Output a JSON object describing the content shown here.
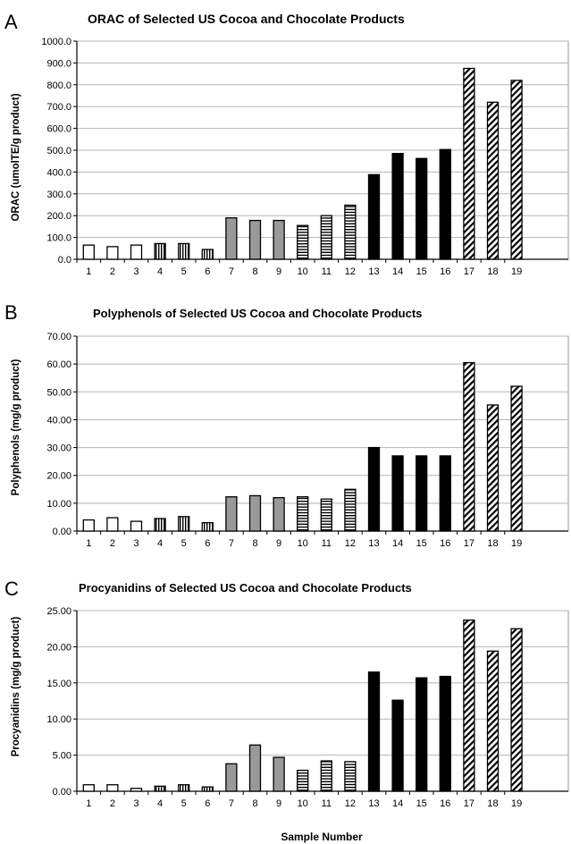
{
  "chart_data": [
    {
      "type": "bar",
      "panel": "A",
      "title": "ORAC of Selected US Cocoa and Chocolate Products",
      "ylabel": "ORAC (umolTE/g product)",
      "xlabel": "",
      "ylim": [
        0,
        1000
      ],
      "ytick_step": 100,
      "ytick_labels": [
        "0.0",
        "100.0",
        "200.0",
        "300.0",
        "400.0",
        "500.0",
        "600.0",
        "700.0",
        "800.0",
        "900.0",
        "1000.0"
      ],
      "grid": true,
      "categories": [
        "1",
        "2",
        "3",
        "4",
        "5",
        "6",
        "7",
        "8",
        "9",
        "10",
        "11",
        "12",
        "13",
        "14",
        "15",
        "16",
        "17",
        "18",
        "19"
      ],
      "values": [
        65,
        58,
        65,
        72,
        72,
        45,
        190,
        178,
        178,
        155,
        200,
        248,
        388,
        485,
        462,
        503,
        875,
        720,
        820
      ],
      "patterns": [
        "white",
        "white",
        "white",
        "vlines",
        "vlines",
        "vlines",
        "gray",
        "gray",
        "gray",
        "hlines",
        "hlines",
        "hlines",
        "black",
        "black",
        "black",
        "black",
        "diag",
        "diag",
        "diag"
      ]
    },
    {
      "type": "bar",
      "panel": "B",
      "title": "Polyphenols of Selected US Cocoa and Chocolate Products",
      "ylabel": "Polyphenols (mg/g product)",
      "xlabel": "",
      "ylim": [
        0,
        70
      ],
      "ytick_step": 10,
      "ytick_labels": [
        "0.00",
        "10.00",
        "20.00",
        "30.00",
        "40.00",
        "50.00",
        "60.00",
        "70.00"
      ],
      "grid": true,
      "categories": [
        "1",
        "2",
        "3",
        "4",
        "5",
        "6",
        "7",
        "8",
        "9",
        "10",
        "11",
        "12",
        "13",
        "14",
        "15",
        "16",
        "17",
        "18",
        "19"
      ],
      "values": [
        4.0,
        4.8,
        3.5,
        4.5,
        5.2,
        3.0,
        12.3,
        12.7,
        12.0,
        12.3,
        11.5,
        15.0,
        30.0,
        27.0,
        27.0,
        27.0,
        60.5,
        45.3,
        52.0
      ],
      "patterns": [
        "white",
        "white",
        "white",
        "vlines",
        "vlines",
        "vlines",
        "gray",
        "gray",
        "gray",
        "hlines",
        "hlines",
        "hlines",
        "black",
        "black",
        "black",
        "black",
        "diag",
        "diag",
        "diag"
      ]
    },
    {
      "type": "bar",
      "panel": "C",
      "title": "Procyanidins of Selected US Cocoa and Chocolate Products",
      "ylabel": "Procyanidins (mg/g product)",
      "xlabel": "Sample Number",
      "ylim": [
        0,
        25
      ],
      "ytick_step": 5,
      "ytick_labels": [
        "0.00",
        "5.00",
        "10.00",
        "15.00",
        "20.00",
        "25.00"
      ],
      "grid": true,
      "categories": [
        "1",
        "2",
        "3",
        "4",
        "5",
        "6",
        "7",
        "8",
        "9",
        "10",
        "11",
        "12",
        "13",
        "14",
        "15",
        "16",
        "17",
        "18",
        "19"
      ],
      "values": [
        0.9,
        0.9,
        0.4,
        0.7,
        0.9,
        0.6,
        3.8,
        6.4,
        4.7,
        2.9,
        4.2,
        4.1,
        16.5,
        12.6,
        15.7,
        15.9,
        23.7,
        19.4,
        22.5
      ],
      "patterns": [
        "white",
        "white",
        "white",
        "vlines",
        "vlines",
        "vlines",
        "gray",
        "gray",
        "gray",
        "hlines",
        "hlines",
        "hlines",
        "black",
        "black",
        "black",
        "black",
        "diag",
        "diag",
        "diag"
      ]
    }
  ]
}
